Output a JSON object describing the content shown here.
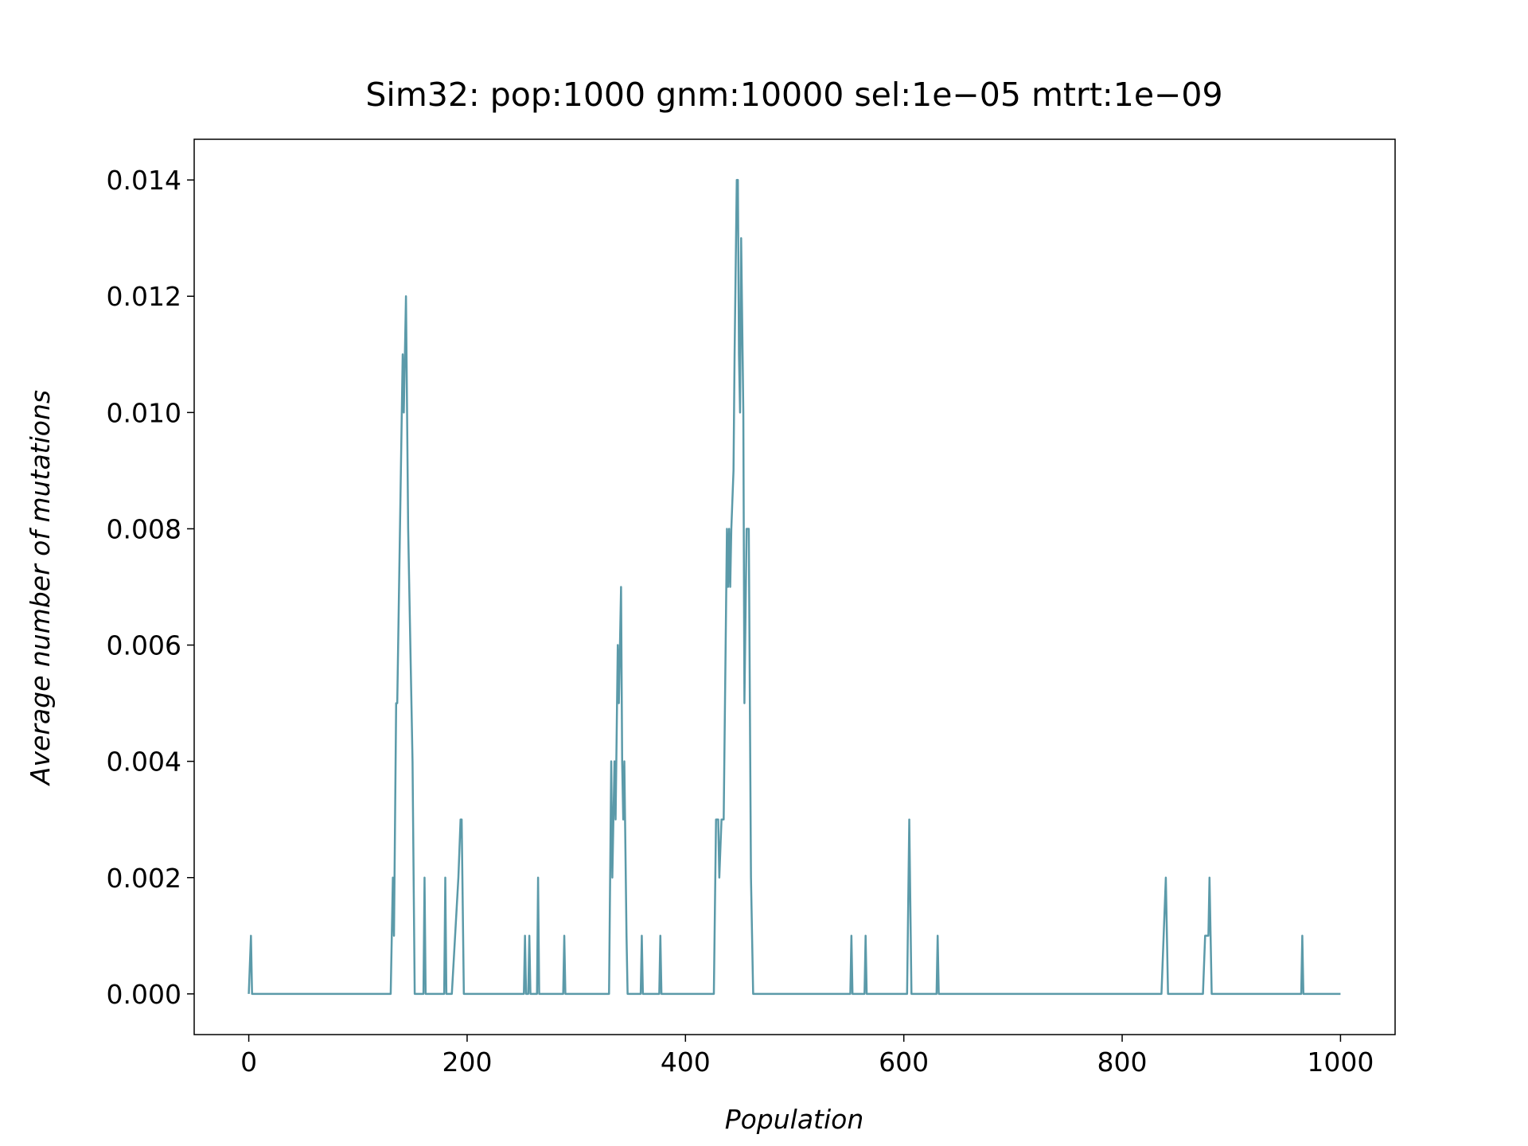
{
  "chart_data": {
    "type": "line",
    "title": "Sim32: pop:1000 gnm:10000 sel:1e−05 mtrt:1e−09",
    "x_label": "Population",
    "y_label": "Average number of mutations",
    "xlim": [
      -50,
      1050
    ],
    "ylim": [
      -0.0007,
      0.0147
    ],
    "xticks": [
      0,
      200,
      400,
      600,
      800,
      1000
    ],
    "yticks": [
      {
        "value": 0,
        "label": "0.000"
      },
      0.002,
      0.004,
      0.006,
      0.008,
      {
        "value": 0.01,
        "label": "0.010"
      },
      0.012,
      0.014
    ],
    "series": [
      {
        "color": "#5b9aa9",
        "x": [
          0,
          2,
          3,
          130,
          132,
          133,
          135,
          136,
          141,
          142,
          144,
          145,
          146,
          147,
          150,
          152,
          160,
          161,
          162,
          179,
          180,
          181,
          186,
          192,
          194,
          195,
          197,
          252,
          253,
          254,
          256,
          257,
          258,
          264,
          265,
          266,
          288,
          289,
          290,
          330,
          332,
          333,
          335,
          336,
          338,
          339,
          340,
          341,
          342,
          343,
          344,
          346,
          347,
          359,
          360,
          361,
          376,
          377,
          378,
          426,
          428,
          430,
          431,
          433,
          435,
          438,
          439,
          440,
          441,
          442,
          444,
          445,
          447,
          448,
          449,
          450,
          451,
          453,
          454,
          456,
          458,
          460,
          462,
          551,
          552,
          553,
          564,
          565,
          566,
          603,
          605,
          607,
          630,
          631,
          632,
          836,
          840,
          842,
          874,
          876,
          879,
          880,
          882,
          964,
          965,
          966,
          1000
        ],
        "values": [
          0,
          0.001,
          0,
          0,
          0.002,
          0.001,
          0.005,
          0.005,
          0.011,
          0.01,
          0.012,
          0.01,
          0.008,
          0.007,
          0.004,
          0,
          0,
          0.002,
          0,
          0,
          0.002,
          0,
          0,
          0.002,
          0.003,
          0.003,
          0,
          0,
          0.001,
          0,
          0,
          0.001,
          0,
          0,
          0.002,
          0,
          0,
          0.001,
          0,
          0,
          0.004,
          0.002,
          0.004,
          0.003,
          0.006,
          0.005,
          0.006,
          0.007,
          0.004,
          0.003,
          0.004,
          0.001,
          0,
          0,
          0.001,
          0,
          0,
          0.001,
          0,
          0,
          0.003,
          0.003,
          0.002,
          0.003,
          0.003,
          0.008,
          0.007,
          0.008,
          0.007,
          0.008,
          0.009,
          0.011,
          0.014,
          0.014,
          0.011,
          0.01,
          0.013,
          0.01,
          0.005,
          0.008,
          0.008,
          0.002,
          0,
          0,
          0.001,
          0,
          0,
          0.001,
          0,
          0,
          0.003,
          0,
          0,
          0.001,
          0,
          0,
          0.002,
          0,
          0,
          0.001,
          0.001,
          0.002,
          0,
          0,
          0.001,
          0,
          0
        ]
      }
    ]
  }
}
